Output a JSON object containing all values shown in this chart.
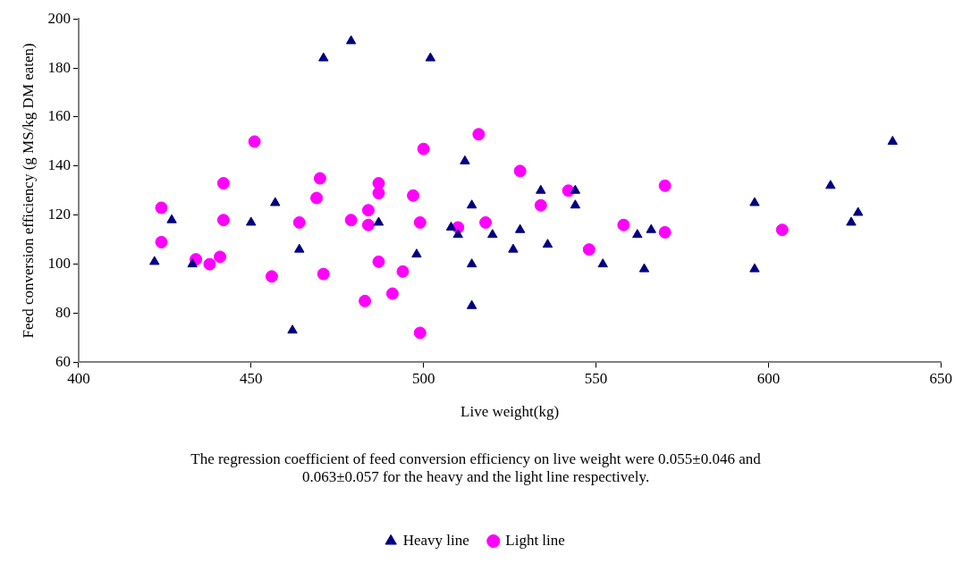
{
  "chart_data": {
    "type": "scatter",
    "xlabel": "Live weight(kg)",
    "ylabel": "Feed conversion efficiency (g MS/kg DM eaten)",
    "annotations": [
      "The regression coefficient of feed conversion efficiency on live weight were 0.055±0.046 and 0.063±0.057 for the heavy and the light line respectively."
    ],
    "xlim": [
      400,
      650
    ],
    "xticks": [
      400,
      450,
      500,
      550,
      600,
      650
    ],
    "ylim": [
      60,
      200
    ],
    "yticks": [
      60,
      80,
      100,
      120,
      140,
      160,
      180,
      200
    ],
    "grid": false,
    "legend": "bottom",
    "series": [
      {
        "name": "Heavy line",
        "color": "#000080",
        "marker": "triangle",
        "x": [
          422,
          427,
          433,
          450,
          457,
          462,
          464,
          471,
          479,
          487,
          498,
          502,
          508,
          510,
          512,
          514,
          514,
          514,
          520,
          526,
          528,
          534,
          536,
          544,
          544,
          552,
          562,
          564,
          566,
          596,
          596,
          618,
          624,
          626,
          636
        ],
        "values": [
          101,
          118,
          100,
          117,
          125,
          73,
          106,
          184,
          191,
          117,
          104,
          184,
          115,
          112,
          142,
          124,
          100,
          83,
          112,
          106,
          114,
          130,
          108,
          130,
          124,
          100,
          112,
          98,
          114,
          125,
          98,
          132,
          117,
          121,
          150
        ]
      },
      {
        "name": "Light line",
        "color": "#ff00ff",
        "marker": "circle",
        "x": [
          424,
          424,
          434,
          438,
          441,
          442,
          442,
          451,
          456,
          464,
          469,
          470,
          471,
          479,
          483,
          484,
          484,
          487,
          487,
          487,
          491,
          494,
          497,
          499,
          499,
          500,
          510,
          516,
          518,
          528,
          534,
          542,
          548,
          558,
          570,
          570,
          604
        ],
        "values": [
          123,
          109,
          102,
          100,
          103,
          133,
          118,
          150,
          95,
          117,
          127,
          135,
          96,
          118,
          85,
          122,
          116,
          133,
          129,
          101,
          88,
          97,
          128,
          72,
          117,
          147,
          115,
          153,
          117,
          138,
          124,
          130,
          106,
          116,
          132,
          113,
          114
        ]
      }
    ]
  }
}
